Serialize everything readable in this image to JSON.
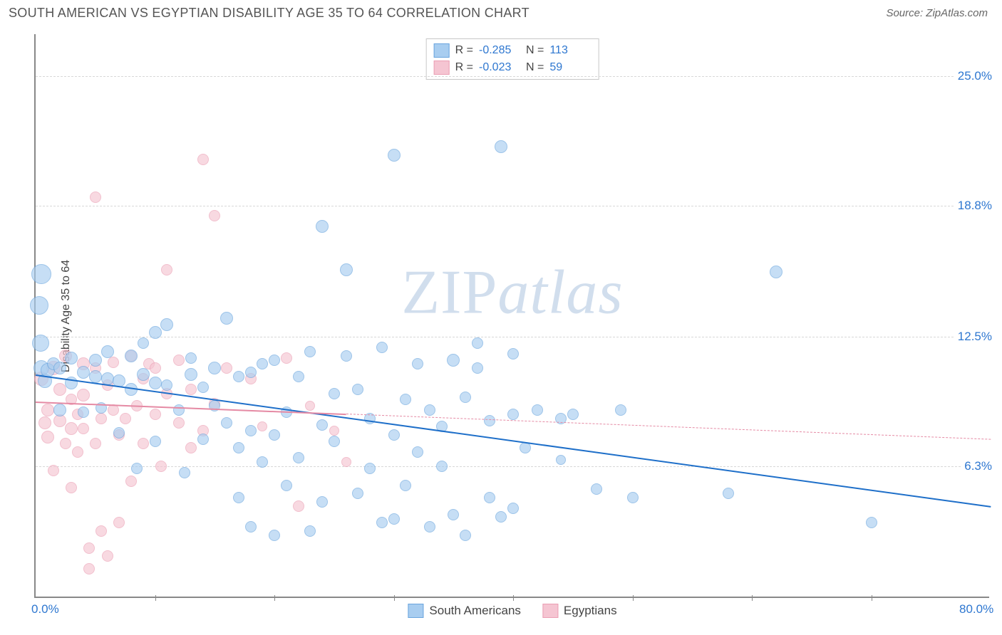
{
  "header": {
    "title": "SOUTH AMERICAN VS EGYPTIAN DISABILITY AGE 35 TO 64 CORRELATION CHART",
    "source_label": "Source: ZipAtlas.com"
  },
  "chart": {
    "type": "scatter",
    "yaxis_title": "Disability Age 35 to 64",
    "xlim": [
      0,
      80
    ],
    "ylim": [
      0,
      27
    ],
    "xtick_labels": [
      "0.0%",
      "80.0%"
    ],
    "xtick_positions": [
      0,
      80
    ],
    "xminor_ticks": [
      10,
      20,
      30,
      40,
      50,
      60,
      70
    ],
    "ytick_labels": [
      "6.3%",
      "12.5%",
      "18.8%",
      "25.0%"
    ],
    "ytick_positions": [
      6.3,
      12.5,
      18.8,
      25.0
    ],
    "grid_color": "#d8d8d8",
    "background_color": "#ffffff",
    "axis_color": "#888888",
    "watermark": {
      "zip": "ZIP",
      "atlas": "atlas"
    },
    "series1": {
      "name": "South Americans",
      "fill": "#a8cdf0",
      "stroke": "#6aa5de",
      "opacity": 0.65,
      "trend": {
        "color": "#1e6fc9",
        "y_at_xmin": 10.7,
        "y_at_xmax": 4.4,
        "width": 2,
        "style": "solid"
      },
      "stats": {
        "R_label": "R =",
        "R": "-0.285",
        "N_label": "N =",
        "N": "113"
      },
      "points": [
        {
          "x": 0.5,
          "y": 15.5,
          "r": 14
        },
        {
          "x": 0.3,
          "y": 14.0,
          "r": 13
        },
        {
          "x": 0.4,
          "y": 12.2,
          "r": 12
        },
        {
          "x": 0.5,
          "y": 11.0,
          "r": 11
        },
        {
          "x": 0.8,
          "y": 10.4,
          "r": 10
        },
        {
          "x": 1.0,
          "y": 10.9,
          "r": 10
        },
        {
          "x": 1.5,
          "y": 11.2,
          "r": 9
        },
        {
          "x": 2,
          "y": 11.0,
          "r": 9
        },
        {
          "x": 2,
          "y": 9.0,
          "r": 9
        },
        {
          "x": 3,
          "y": 10.3,
          "r": 9
        },
        {
          "x": 3,
          "y": 11.5,
          "r": 9
        },
        {
          "x": 4,
          "y": 10.8,
          "r": 9
        },
        {
          "x": 4,
          "y": 8.9,
          "r": 8
        },
        {
          "x": 5,
          "y": 10.6,
          "r": 9
        },
        {
          "x": 5,
          "y": 11.4,
          "r": 9
        },
        {
          "x": 5.5,
          "y": 9.1,
          "r": 8
        },
        {
          "x": 6,
          "y": 10.5,
          "r": 9
        },
        {
          "x": 6,
          "y": 11.8,
          "r": 9
        },
        {
          "x": 7,
          "y": 10.4,
          "r": 9
        },
        {
          "x": 7,
          "y": 7.9,
          "r": 8
        },
        {
          "x": 8,
          "y": 10.0,
          "r": 9
        },
        {
          "x": 8,
          "y": 11.6,
          "r": 9
        },
        {
          "x": 8.5,
          "y": 6.2,
          "r": 8
        },
        {
          "x": 9,
          "y": 10.7,
          "r": 9
        },
        {
          "x": 9,
          "y": 12.2,
          "r": 8
        },
        {
          "x": 10,
          "y": 10.3,
          "r": 9
        },
        {
          "x": 10,
          "y": 7.5,
          "r": 8
        },
        {
          "x": 10,
          "y": 12.7,
          "r": 9
        },
        {
          "x": 11,
          "y": 10.2,
          "r": 8
        },
        {
          "x": 11,
          "y": 13.1,
          "r": 9
        },
        {
          "x": 12,
          "y": 9.0,
          "r": 8
        },
        {
          "x": 12.5,
          "y": 6.0,
          "r": 8
        },
        {
          "x": 13,
          "y": 10.7,
          "r": 9
        },
        {
          "x": 13,
          "y": 11.5,
          "r": 8
        },
        {
          "x": 14,
          "y": 7.6,
          "r": 8
        },
        {
          "x": 14,
          "y": 10.1,
          "r": 8
        },
        {
          "x": 15,
          "y": 11.0,
          "r": 9
        },
        {
          "x": 15,
          "y": 9.2,
          "r": 8
        },
        {
          "x": 16,
          "y": 8.4,
          "r": 8
        },
        {
          "x": 16,
          "y": 13.4,
          "r": 9
        },
        {
          "x": 17,
          "y": 7.2,
          "r": 8
        },
        {
          "x": 17,
          "y": 10.6,
          "r": 8
        },
        {
          "x": 17,
          "y": 4.8,
          "r": 8
        },
        {
          "x": 18,
          "y": 8.0,
          "r": 8
        },
        {
          "x": 18,
          "y": 3.4,
          "r": 8
        },
        {
          "x": 18,
          "y": 10.8,
          "r": 8
        },
        {
          "x": 19,
          "y": 11.2,
          "r": 8
        },
        {
          "x": 19,
          "y": 6.5,
          "r": 8
        },
        {
          "x": 20,
          "y": 7.8,
          "r": 8
        },
        {
          "x": 20,
          "y": 3.0,
          "r": 8
        },
        {
          "x": 20,
          "y": 11.4,
          "r": 8
        },
        {
          "x": 21,
          "y": 5.4,
          "r": 8
        },
        {
          "x": 21,
          "y": 8.9,
          "r": 8
        },
        {
          "x": 22,
          "y": 10.6,
          "r": 8
        },
        {
          "x": 22,
          "y": 6.7,
          "r": 8
        },
        {
          "x": 23,
          "y": 3.2,
          "r": 8
        },
        {
          "x": 23,
          "y": 11.8,
          "r": 8
        },
        {
          "x": 24,
          "y": 8.3,
          "r": 8
        },
        {
          "x": 24,
          "y": 4.6,
          "r": 8
        },
        {
          "x": 24,
          "y": 17.8,
          "r": 9
        },
        {
          "x": 25,
          "y": 7.5,
          "r": 8
        },
        {
          "x": 25,
          "y": 9.8,
          "r": 8
        },
        {
          "x": 26,
          "y": 11.6,
          "r": 8
        },
        {
          "x": 26,
          "y": 15.7,
          "r": 9
        },
        {
          "x": 27,
          "y": 5.0,
          "r": 8
        },
        {
          "x": 27,
          "y": 10.0,
          "r": 8
        },
        {
          "x": 28,
          "y": 8.6,
          "r": 8
        },
        {
          "x": 28,
          "y": 6.2,
          "r": 8
        },
        {
          "x": 29,
          "y": 3.6,
          "r": 8
        },
        {
          "x": 29,
          "y": 12.0,
          "r": 8
        },
        {
          "x": 30,
          "y": 21.2,
          "r": 9
        },
        {
          "x": 30,
          "y": 7.8,
          "r": 8
        },
        {
          "x": 30,
          "y": 3.8,
          "r": 8
        },
        {
          "x": 31,
          "y": 9.5,
          "r": 8
        },
        {
          "x": 31,
          "y": 5.4,
          "r": 8
        },
        {
          "x": 32,
          "y": 11.2,
          "r": 8
        },
        {
          "x": 32,
          "y": 7.0,
          "r": 8
        },
        {
          "x": 33,
          "y": 3.4,
          "r": 8
        },
        {
          "x": 33,
          "y": 9.0,
          "r": 8
        },
        {
          "x": 34,
          "y": 8.2,
          "r": 8
        },
        {
          "x": 34,
          "y": 6.3,
          "r": 8
        },
        {
          "x": 35,
          "y": 11.4,
          "r": 9
        },
        {
          "x": 35,
          "y": 4.0,
          "r": 8
        },
        {
          "x": 36,
          "y": 9.6,
          "r": 8
        },
        {
          "x": 36,
          "y": 3.0,
          "r": 8
        },
        {
          "x": 37,
          "y": 11.0,
          "r": 8
        },
        {
          "x": 37,
          "y": 12.2,
          "r": 8
        },
        {
          "x": 38,
          "y": 8.5,
          "r": 8
        },
        {
          "x": 38,
          "y": 4.8,
          "r": 8
        },
        {
          "x": 39,
          "y": 21.6,
          "r": 9
        },
        {
          "x": 39,
          "y": 3.9,
          "r": 8
        },
        {
          "x": 40,
          "y": 8.8,
          "r": 8
        },
        {
          "x": 40,
          "y": 11.7,
          "r": 8
        },
        {
          "x": 40,
          "y": 4.3,
          "r": 8
        },
        {
          "x": 41,
          "y": 7.2,
          "r": 8
        },
        {
          "x": 42,
          "y": 9.0,
          "r": 8
        },
        {
          "x": 44,
          "y": 8.6,
          "r": 8
        },
        {
          "x": 44,
          "y": 6.6,
          "r": 7
        },
        {
          "x": 45,
          "y": 8.8,
          "r": 8
        },
        {
          "x": 47,
          "y": 5.2,
          "r": 8
        },
        {
          "x": 49,
          "y": 9.0,
          "r": 8
        },
        {
          "x": 50,
          "y": 4.8,
          "r": 8
        },
        {
          "x": 58,
          "y": 5.0,
          "r": 8
        },
        {
          "x": 62,
          "y": 15.6,
          "r": 9
        },
        {
          "x": 70,
          "y": 3.6,
          "r": 8
        }
      ]
    },
    "series2": {
      "name": "Egyptians",
      "fill": "#f5c5d2",
      "stroke": "#eb9eb3",
      "opacity": 0.65,
      "trend": {
        "color": "#e58aa4",
        "y_at_xmin": 9.4,
        "y_at_xmax": 7.6,
        "width": 1.5,
        "style": "solid-then-dashed",
        "solid_until_x": 26
      },
      "stats": {
        "R_label": "R =",
        "R": "-0.023",
        "N_label": "N =",
        "N": "59"
      },
      "points": [
        {
          "x": 0.5,
          "y": 10.5,
          "r": 10
        },
        {
          "x": 0.8,
          "y": 8.4,
          "r": 9
        },
        {
          "x": 1,
          "y": 9.0,
          "r": 9
        },
        {
          "x": 1,
          "y": 7.7,
          "r": 9
        },
        {
          "x": 1.5,
          "y": 11.0,
          "r": 10
        },
        {
          "x": 1.5,
          "y": 6.1,
          "r": 8
        },
        {
          "x": 2,
          "y": 8.5,
          "r": 9
        },
        {
          "x": 2,
          "y": 10.0,
          "r": 9
        },
        {
          "x": 2.5,
          "y": 7.4,
          "r": 8
        },
        {
          "x": 2.5,
          "y": 11.6,
          "r": 9
        },
        {
          "x": 3,
          "y": 8.1,
          "r": 9
        },
        {
          "x": 3,
          "y": 9.5,
          "r": 8
        },
        {
          "x": 3,
          "y": 5.3,
          "r": 8
        },
        {
          "x": 3.5,
          "y": 8.8,
          "r": 8
        },
        {
          "x": 3.5,
          "y": 7.0,
          "r": 8
        },
        {
          "x": 4,
          "y": 9.7,
          "r": 9
        },
        {
          "x": 4,
          "y": 8.1,
          "r": 8
        },
        {
          "x": 4,
          "y": 11.2,
          "r": 9
        },
        {
          "x": 4.5,
          "y": 1.4,
          "r": 8
        },
        {
          "x": 4.5,
          "y": 2.4,
          "r": 8
        },
        {
          "x": 5,
          "y": 11.0,
          "r": 8
        },
        {
          "x": 5,
          "y": 7.4,
          "r": 8
        },
        {
          "x": 5,
          "y": 19.2,
          "r": 8
        },
        {
          "x": 5.5,
          "y": 8.6,
          "r": 8
        },
        {
          "x": 5.5,
          "y": 3.2,
          "r": 8
        },
        {
          "x": 6,
          "y": 10.2,
          "r": 8
        },
        {
          "x": 6,
          "y": 2.0,
          "r": 8
        },
        {
          "x": 6.5,
          "y": 9.0,
          "r": 8
        },
        {
          "x": 6.5,
          "y": 11.3,
          "r": 8
        },
        {
          "x": 7,
          "y": 7.8,
          "r": 8
        },
        {
          "x": 7,
          "y": 3.6,
          "r": 8
        },
        {
          "x": 7.5,
          "y": 8.6,
          "r": 8
        },
        {
          "x": 8,
          "y": 11.6,
          "r": 8
        },
        {
          "x": 8,
          "y": 5.6,
          "r": 8
        },
        {
          "x": 8.5,
          "y": 9.2,
          "r": 8
        },
        {
          "x": 9,
          "y": 10.5,
          "r": 8
        },
        {
          "x": 9,
          "y": 7.4,
          "r": 8
        },
        {
          "x": 9.5,
          "y": 11.2,
          "r": 8
        },
        {
          "x": 10,
          "y": 8.8,
          "r": 8
        },
        {
          "x": 10,
          "y": 11.0,
          "r": 8
        },
        {
          "x": 10.5,
          "y": 6.3,
          "r": 8
        },
        {
          "x": 11,
          "y": 9.8,
          "r": 8
        },
        {
          "x": 11,
          "y": 15.7,
          "r": 8
        },
        {
          "x": 12,
          "y": 8.4,
          "r": 8
        },
        {
          "x": 12,
          "y": 11.4,
          "r": 8
        },
        {
          "x": 13,
          "y": 7.2,
          "r": 8
        },
        {
          "x": 13,
          "y": 10.0,
          "r": 8
        },
        {
          "x": 14,
          "y": 21.0,
          "r": 8
        },
        {
          "x": 14,
          "y": 8.0,
          "r": 8
        },
        {
          "x": 15,
          "y": 9.3,
          "r": 8
        },
        {
          "x": 15,
          "y": 18.3,
          "r": 8
        },
        {
          "x": 16,
          "y": 11.0,
          "r": 8
        },
        {
          "x": 18,
          "y": 10.5,
          "r": 8
        },
        {
          "x": 19,
          "y": 8.2,
          "r": 7
        },
        {
          "x": 21,
          "y": 11.5,
          "r": 8
        },
        {
          "x": 22,
          "y": 4.4,
          "r": 8
        },
        {
          "x": 23,
          "y": 9.2,
          "r": 7
        },
        {
          "x": 25,
          "y": 8.0,
          "r": 7
        },
        {
          "x": 26,
          "y": 6.5,
          "r": 7
        }
      ]
    },
    "legend_bottom": [
      {
        "label": "South Americans",
        "fill": "#a8cdf0",
        "stroke": "#6aa5de"
      },
      {
        "label": "Egyptians",
        "fill": "#f5c5d2",
        "stroke": "#eb9eb3"
      }
    ]
  }
}
